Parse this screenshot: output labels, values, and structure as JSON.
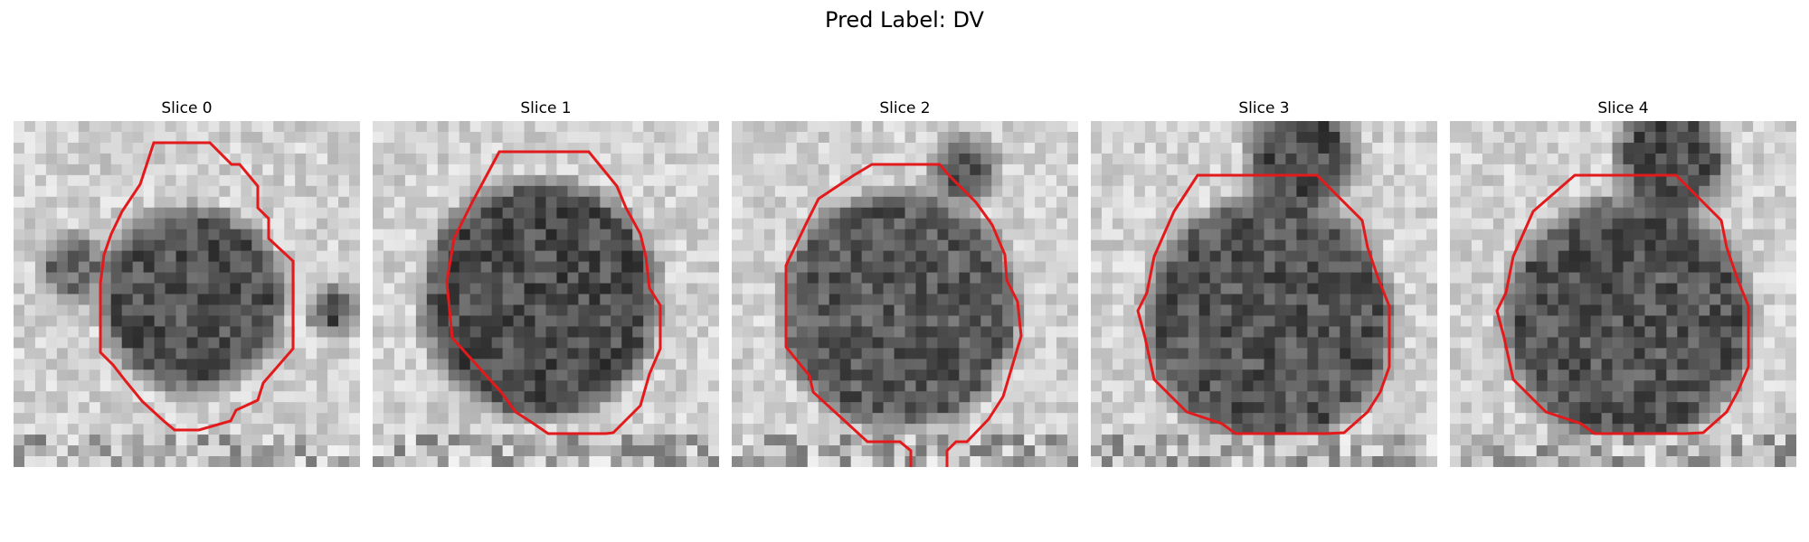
{
  "figure": {
    "title": "Pred Label: DV"
  },
  "panels": [
    {
      "title": "Slice 0"
    },
    {
      "title": "Slice 1"
    },
    {
      "title": "Slice 2"
    },
    {
      "title": "Slice 3"
    },
    {
      "title": "Slice 4"
    }
  ],
  "colors": {
    "contour": "#e31a1c",
    "colormap": "grayscale"
  }
}
